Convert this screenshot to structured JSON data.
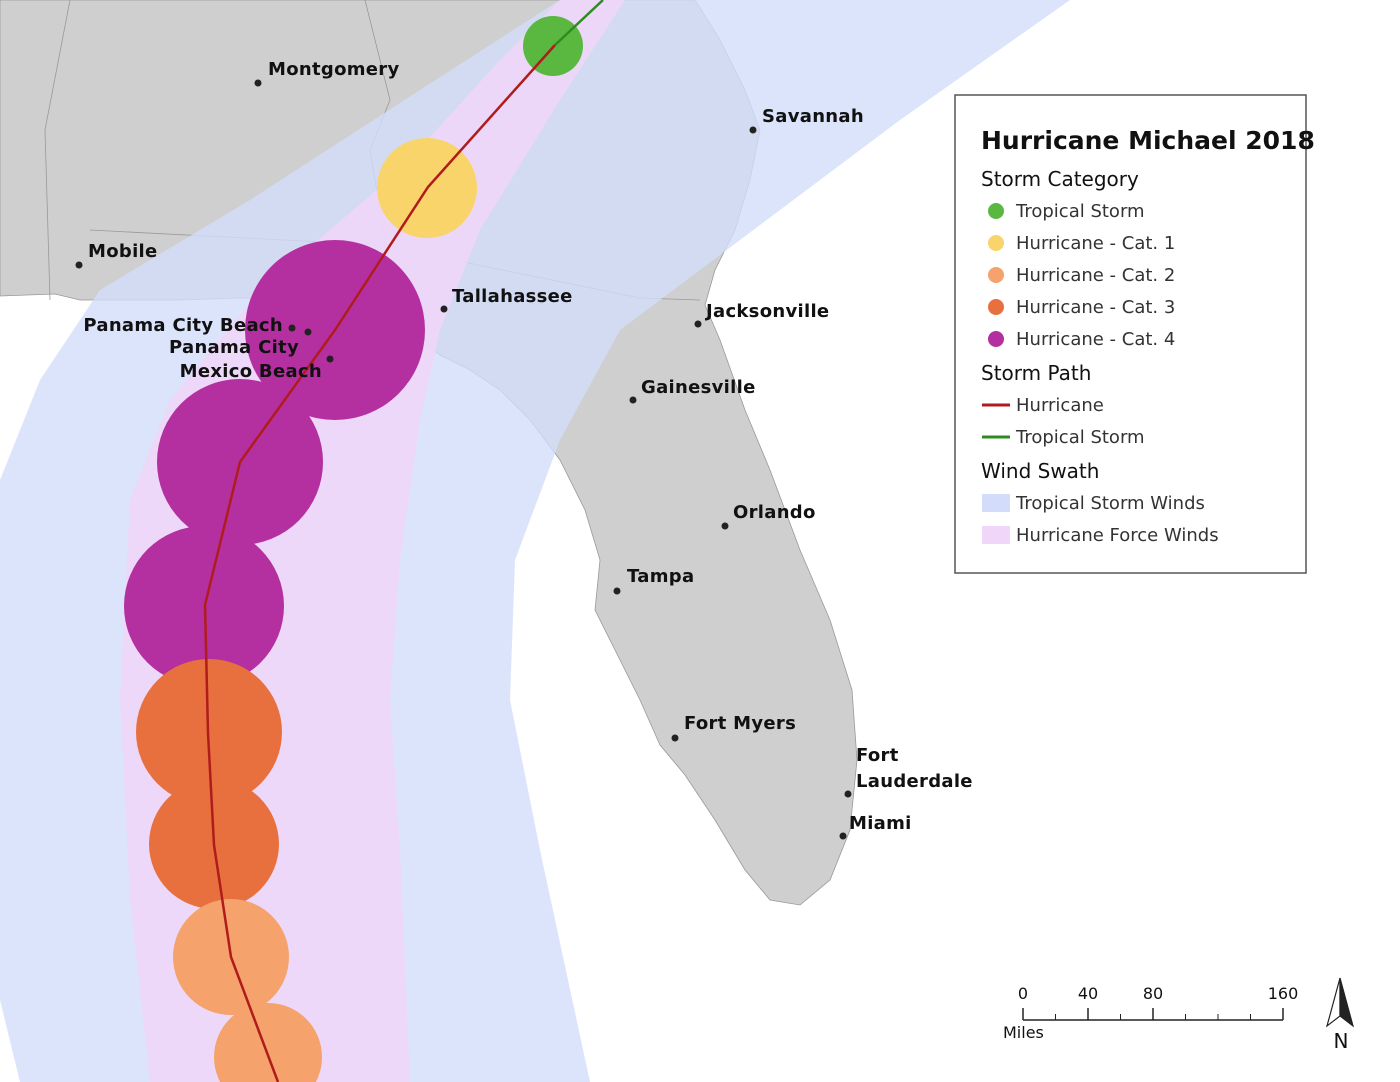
{
  "legend": {
    "title": "Hurricane Michael 2018",
    "sections": [
      {
        "heading": "Storm Category",
        "symbol": "circle",
        "items": [
          {
            "label": "Tropical Storm",
            "color": "#5ab840"
          },
          {
            "label": "Hurricane - Cat. 1",
            "color": "#f8d46a"
          },
          {
            "label": "Hurricane - Cat. 2",
            "color": "#f5a26c"
          },
          {
            "label": "Hurricane - Cat. 3",
            "color": "#e8703e"
          },
          {
            "label": "Hurricane - Cat. 4",
            "color": "#b430a0"
          }
        ]
      },
      {
        "heading": "Storm Path",
        "symbol": "line",
        "items": [
          {
            "label": "Hurricane",
            "color": "#b01c1c"
          },
          {
            "label": "Tropical Storm",
            "color": "#2e8b1e"
          }
        ]
      },
      {
        "heading": "Wind Swath",
        "symbol": "rect",
        "items": [
          {
            "label": "Tropical Storm Winds",
            "color": "#d3ddfb"
          },
          {
            "label": "Hurricane Force Winds",
            "color": "#f0d6f8"
          }
        ]
      }
    ]
  },
  "cities": [
    {
      "label": "Montgomery"
    },
    {
      "label": "Savannah"
    },
    {
      "label": "Mobile"
    },
    {
      "label": "Tallahassee"
    },
    {
      "label": "Jacksonville"
    },
    {
      "label": "Panama City Beach"
    },
    {
      "label": "Panama City"
    },
    {
      "label": "Mexico Beach"
    },
    {
      "label": "Gainesville"
    },
    {
      "label": "Orlando"
    },
    {
      "label": "Tampa"
    },
    {
      "label": "Fort Myers"
    },
    {
      "lines": [
        "Fort",
        "Lauderdale"
      ]
    },
    {
      "label": "Miami"
    }
  ],
  "scale_bar": {
    "ticks": [
      0,
      40,
      80,
      160
    ],
    "unit": "Miles"
  },
  "north_arrow": "N"
}
